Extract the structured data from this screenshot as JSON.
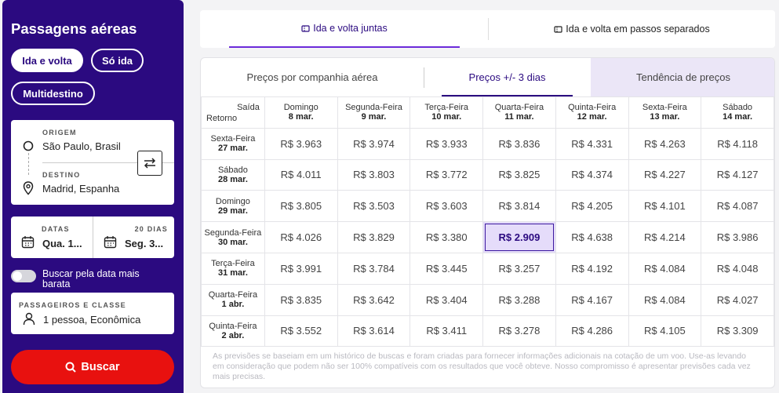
{
  "sidebar": {
    "title": "Passagens aéreas",
    "trip_types": [
      "Ida e volta",
      "Só ida",
      "Multidestino"
    ],
    "origin": {
      "label": "ORIGEM",
      "value": "São Paulo, Brasil"
    },
    "destination": {
      "label": "DESTINO",
      "value": "Madrid, Espanha"
    },
    "dates": {
      "label": "DATAS",
      "depart": "Qua. 1...",
      "days_label": "20 DIAS",
      "return": "Seg. 3..."
    },
    "cheapest_toggle": "Buscar pela data mais barata",
    "passengers": {
      "label": "PASSAGEIROS E CLASSE",
      "value": "1 pessoa, Econômica"
    },
    "search_label": "Buscar"
  },
  "top_tabs": [
    "Ida e volta juntas",
    "Ida e volta em passos separados"
  ],
  "sub_tabs": [
    "Preços por companhia aérea",
    "Preços +/- 3 dias",
    "Tendência de preços"
  ],
  "grid": {
    "corner_top": "Saída",
    "corner_bottom": "Retorno",
    "columns": [
      {
        "day": "Domingo",
        "date": "8 mar."
      },
      {
        "day": "Segunda-Feira",
        "date": "9 mar."
      },
      {
        "day": "Terça-Feira",
        "date": "10 mar."
      },
      {
        "day": "Quarta-Feira",
        "date": "11 mar."
      },
      {
        "day": "Quinta-Feira",
        "date": "12 mar."
      },
      {
        "day": "Sexta-Feira",
        "date": "13 mar."
      },
      {
        "day": "Sábado",
        "date": "14 mar."
      }
    ],
    "rows": [
      {
        "day": "Sexta-Feira",
        "date": "27 mar.",
        "prices": [
          "R$ 3.963",
          "R$ 3.974",
          "R$ 3.933",
          "R$ 3.836",
          "R$ 4.331",
          "R$ 4.263",
          "R$ 4.118"
        ]
      },
      {
        "day": "Sábado",
        "date": "28 mar.",
        "prices": [
          "R$ 4.011",
          "R$ 3.803",
          "R$ 3.772",
          "R$ 3.825",
          "R$ 4.374",
          "R$ 4.227",
          "R$ 4.127"
        ]
      },
      {
        "day": "Domingo",
        "date": "29 mar.",
        "prices": [
          "R$ 3.805",
          "R$ 3.503",
          "R$ 3.603",
          "R$ 3.814",
          "R$ 4.205",
          "R$ 4.101",
          "R$ 4.087"
        ]
      },
      {
        "day": "Segunda-Feira",
        "date": "30 mar.",
        "prices": [
          "R$ 4.026",
          "R$ 3.829",
          "R$ 3.380",
          "R$ 2.909",
          "R$ 4.638",
          "R$ 4.214",
          "R$ 3.986"
        ]
      },
      {
        "day": "Terça-Feira",
        "date": "31 mar.",
        "prices": [
          "R$ 3.991",
          "R$ 3.784",
          "R$ 3.445",
          "R$ 3.257",
          "R$ 4.192",
          "R$ 4.084",
          "R$ 4.048"
        ]
      },
      {
        "day": "Quarta-Feira",
        "date": "1 abr.",
        "prices": [
          "R$ 3.835",
          "R$ 3.642",
          "R$ 3.404",
          "R$ 3.288",
          "R$ 4.167",
          "R$ 4.084",
          "R$ 4.027"
        ]
      },
      {
        "day": "Quinta-Feira",
        "date": "2 abr.",
        "prices": [
          "R$ 3.552",
          "R$ 3.614",
          "R$ 3.411",
          "R$ 3.278",
          "R$ 4.286",
          "R$ 4.105",
          "R$ 3.309"
        ]
      }
    ],
    "best": {
      "row": 3,
      "col": 3
    }
  },
  "footnote": "As previsões se baseiam em um histórico de buscas e foram criadas para fornecer informações adicionais na cotação de um voo. Use-as levando em consideração que podem não ser 100% compatíveis com os resultados que você obteve. Nosso compromisso é apresentar previsões cada vez mais precisas.",
  "colors": {
    "brand": "#2b0a80",
    "accent": "#6c2bd9",
    "search": "#e8110f",
    "best_bg": "#e5dcfa"
  }
}
